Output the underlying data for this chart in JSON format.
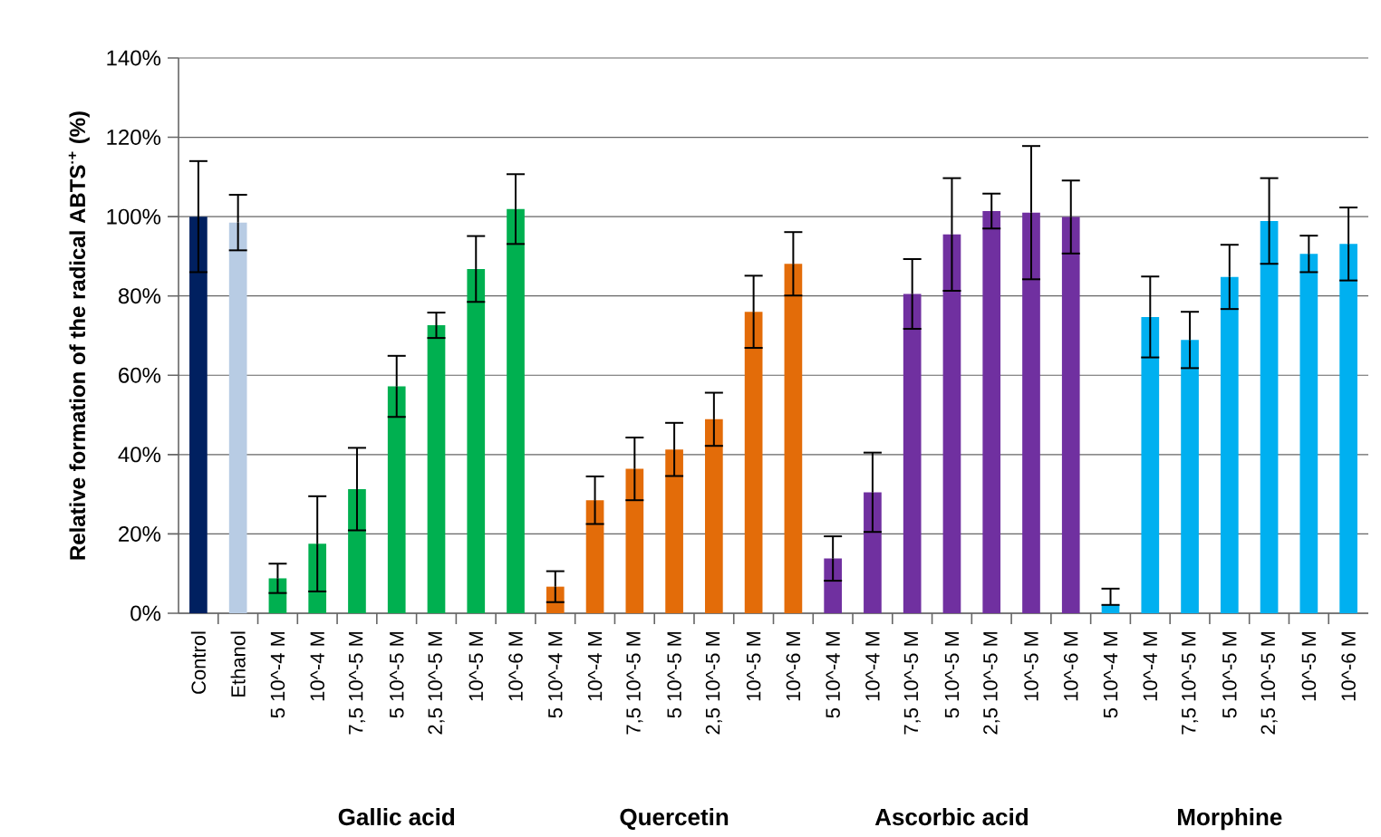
{
  "chart_data": {
    "type": "bar",
    "ylabel": "Relative formation of the radical ABTS$^{·+}$ (%)",
    "categories": [
      "Control",
      "Ethanol",
      "5 10^-4 M",
      "10^-4 M",
      "7,5 10^-5 M",
      "5 10^-5 M",
      "2,5 10^-5 M",
      "10^-5 M",
      "10^-6 M",
      "5 10^-4 M",
      "10^-4 M",
      "7,5 10^-5 M",
      "5 10^-5 M",
      "2,5 10^-5 M",
      "10^-5 M",
      "10^-6 M",
      "5 10^-4 M",
      "10^-4 M",
      "7,5 10^-5 M",
      "5 10^-5 M",
      "2,5 10^-5 M",
      "10^-5 M",
      "10^-6 M",
      "5 10^-4 M",
      "10^-4 M",
      "7,5 10^-5 M",
      "5 10^-5 M",
      "2,5 10^-5 M",
      "10^-5 M",
      "10^-6 M"
    ],
    "values": [
      100,
      98.5,
      8.8,
      17.5,
      31.3,
      57.2,
      72.6,
      86.8,
      101.9,
      6.7,
      28.5,
      36.4,
      41.3,
      48.9,
      76.0,
      88.1,
      13.8,
      30.5,
      80.5,
      95.5,
      101.4,
      101.0,
      99.9,
      2.1,
      74.7,
      68.9,
      84.8,
      98.9,
      90.6,
      93.1
    ],
    "errors": [
      14,
      7,
      3.7,
      12,
      10.4,
      7.7,
      3.2,
      8.3,
      8.8,
      3.9,
      6,
      7.9,
      6.7,
      6.7,
      9.1,
      8,
      5.6,
      10,
      8.8,
      14.2,
      4.4,
      16.8,
      9.2,
      [
        2.1,
        6.2
      ],
      10.2,
      7.1,
      8.1,
      10.8,
      4.6,
      9.2
    ],
    "colors": [
      "#002060",
      "#b8cce4",
      "#00b050",
      "#00b050",
      "#00b050",
      "#00b050",
      "#00b050",
      "#00b050",
      "#00b050",
      "#e36c09",
      "#e36c09",
      "#e36c09",
      "#e36c09",
      "#e36c09",
      "#e36c09",
      "#e36c09",
      "#7030a0",
      "#7030a0",
      "#7030a0",
      "#7030a0",
      "#7030a0",
      "#7030a0",
      "#7030a0",
      "#00b0f0",
      "#00b0f0",
      "#00b0f0",
      "#00b0f0",
      "#00b0f0",
      "#00b0f0",
      "#00b0f0"
    ],
    "ylim": [
      0,
      140
    ],
    "yticks": [
      {
        "value": 0,
        "label": "0%"
      },
      {
        "value": 20,
        "label": "20%"
      },
      {
        "value": 40,
        "label": "40%"
      },
      {
        "value": 60,
        "label": "60%"
      },
      {
        "value": 80,
        "label": "80%"
      },
      {
        "value": 100,
        "label": "100%"
      },
      {
        "value": 120,
        "label": "120%"
      },
      {
        "value": 140,
        "label": "140%"
      }
    ],
    "grid": "y",
    "annotations": [
      "Gallic acid",
      "Quercetin",
      "Ascorbic acid",
      "Morphine"
    ]
  }
}
